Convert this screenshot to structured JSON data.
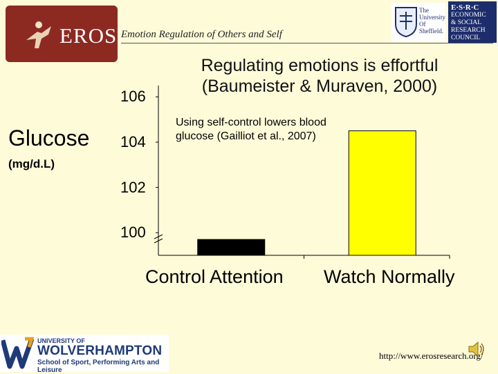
{
  "header": {
    "logo_text": "EROS",
    "subtitle": "Emotion Regulation of Others and Self",
    "sheffield_logo": [
      "The",
      "University",
      "Of",
      "Sheffield."
    ],
    "esrc_logo": [
      "E·S·R·C",
      "ECONOMIC",
      "& SOCIAL",
      "RESEARCH",
      "COUNCIL"
    ]
  },
  "chart_data": {
    "type": "bar",
    "title": "Regulating emotions is effortful (Baumeister & Muraven, 2000)",
    "ylabel": "Glucose",
    "ylabel_unit": "(mg/d.L)",
    "annotation": "Using self-control lowers blood glucose (Gailliot et al., 2007)",
    "categories": [
      "Control Attention",
      "Watch Normally"
    ],
    "values": [
      99.7,
      104.5
    ],
    "ylim": [
      99.0,
      106.5
    ],
    "yticks": [
      100,
      102,
      104,
      106
    ],
    "axis_break": true,
    "colors": [
      "#000000",
      "#ffff00"
    ],
    "grid": false
  },
  "footer": {
    "wlv_logo": [
      "UNIVERSITY OF",
      "WOLVERHAMPTON",
      "School of Sport, Performing Arts and Leisure"
    ],
    "url": "http://www.erosresearch.org/",
    "speaker_icon": "speaker-icon"
  }
}
